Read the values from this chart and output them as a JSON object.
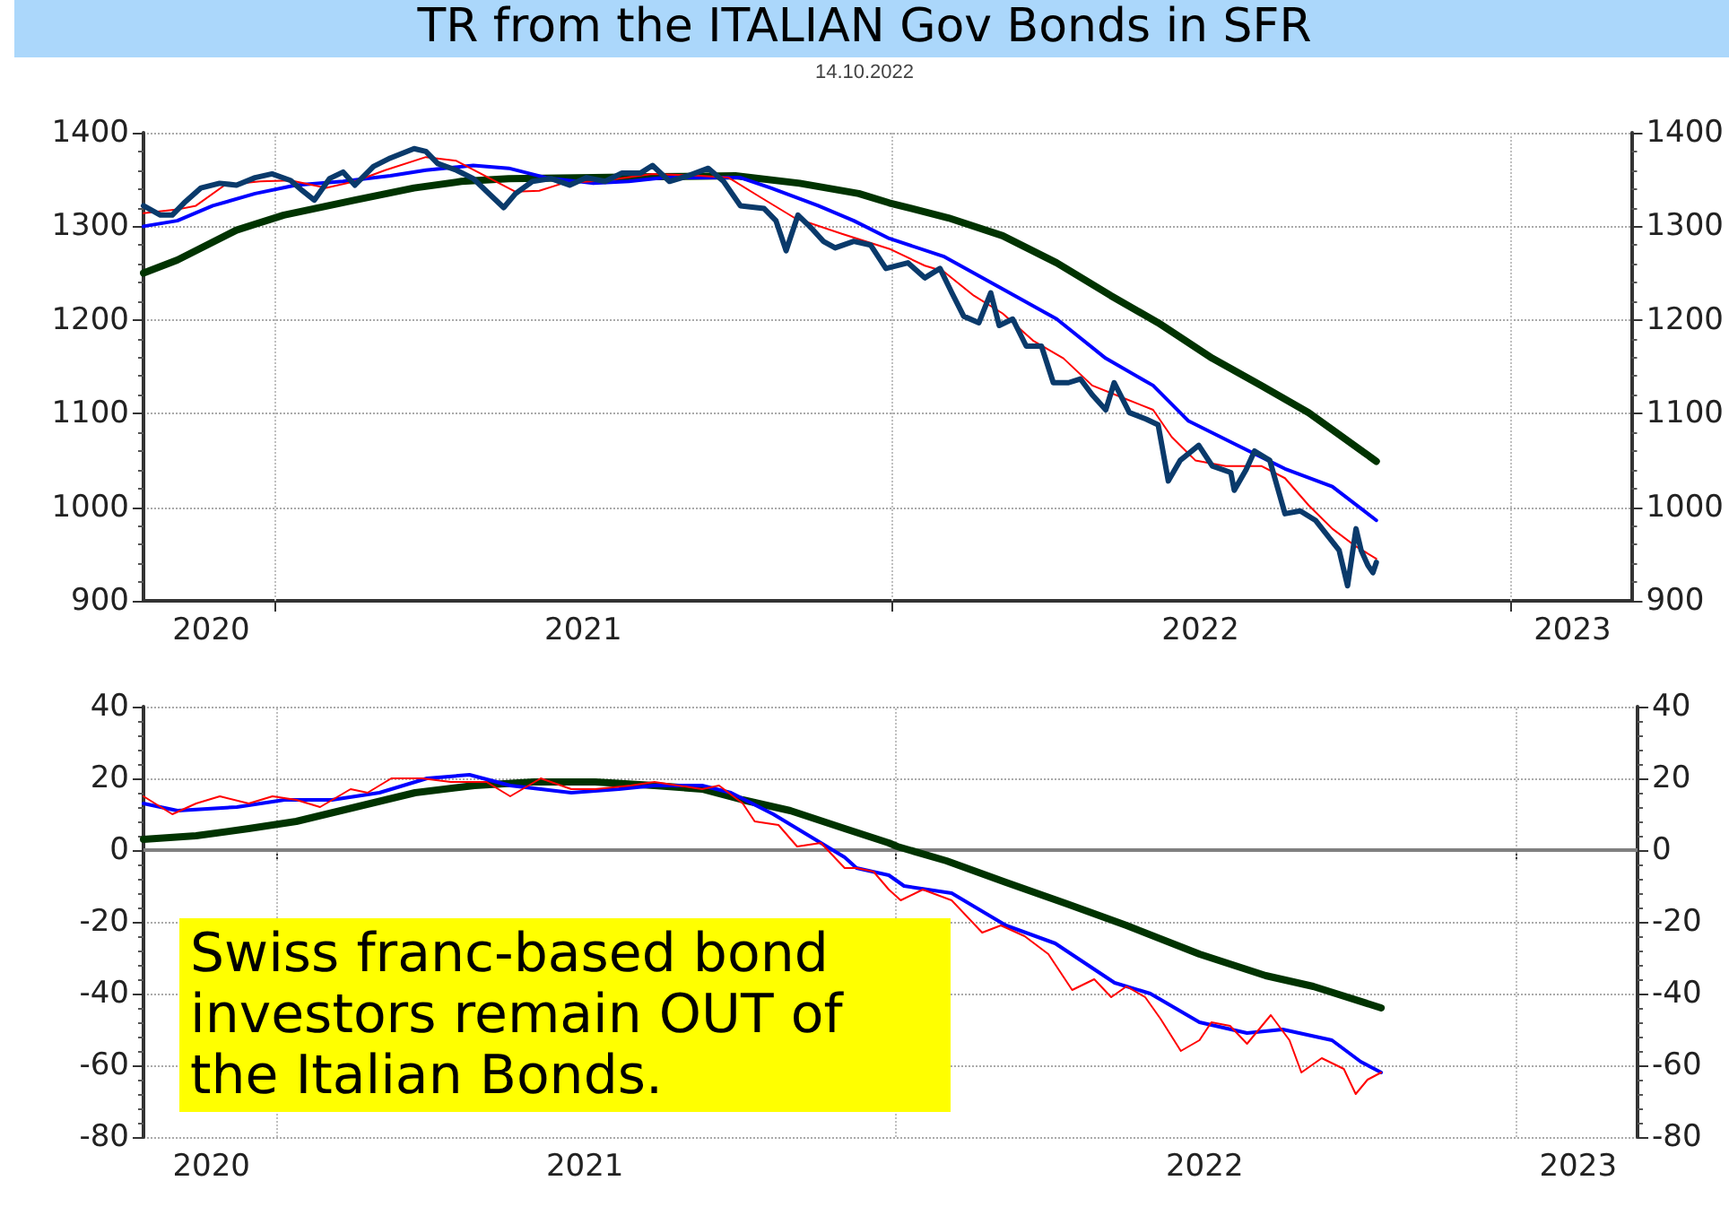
{
  "chart_data": [
    {
      "type": "line",
      "title": "TR from the ITALIAN Gov Bonds in SFR",
      "subtitle": "14.10.2022",
      "marker": "none",
      "grid": "y",
      "xlim": [
        "2020-10-15",
        "2023-03-14"
      ],
      "xticks": [
        {
          "value": "2020-11-24",
          "label": "2020"
        },
        {
          "value": "2021-01-01",
          "label": null
        },
        {
          "value": "2021-07-02",
          "label": "2021"
        },
        {
          "value": "2022-01-01",
          "label": null
        },
        {
          "value": "2022-07-02",
          "label": "2022"
        },
        {
          "value": "2023-01-01",
          "label": null
        },
        {
          "value": "2023-02-07",
          "label": "2023"
        }
      ],
      "ylim": [
        900,
        1400
      ],
      "yticks": [
        900,
        1000,
        1100,
        1200,
        1300,
        1400
      ],
      "y2lim": [
        900,
        1400
      ],
      "y2ticks": [
        900,
        1000,
        1100,
        1200,
        1300,
        1400
      ],
      "ref_lines": [
        {
          "axis": "x",
          "value": "2021-01-01",
          "label": null,
          "color": "#c0c0c0",
          "line_style": "dotted"
        },
        {
          "axis": "x",
          "value": "2022-01-01",
          "label": null,
          "color": "#c0c0c0",
          "line_style": "dotted"
        },
        {
          "axis": "x",
          "value": "2023-01-01",
          "label": null,
          "color": "#c0c0c0",
          "line_style": "dotted"
        }
      ],
      "series": [
        {
          "color": "#0a3a6b",
          "x": [
            "2020-10-15",
            "2020-10-25",
            "2020-11-01",
            "2020-11-08",
            "2020-11-18",
            "2020-11-29",
            "2020-12-09",
            "2020-12-20",
            "2020-12-30",
            "2021-01-10",
            "2021-01-17",
            "2021-01-24",
            "2021-02-02",
            "2021-02-10",
            "2021-02-17",
            "2021-02-28",
            "2021-03-10",
            "2021-03-24",
            "2021-03-31",
            "2021-04-07",
            "2021-04-18",
            "2021-04-28",
            "2021-05-09",
            "2021-05-16",
            "2021-05-23",
            "2021-06-02",
            "2021-06-13",
            "2021-06-24",
            "2021-07-04",
            "2021-07-15",
            "2021-07-25",
            "2021-08-05",
            "2021-08-12",
            "2021-08-22",
            "2021-09-02",
            "2021-09-14",
            "2021-09-23",
            "2021-10-03",
            "2021-10-17",
            "2021-10-24",
            "2021-10-30",
            "2021-11-06",
            "2021-11-14",
            "2021-11-21",
            "2021-11-28",
            "2021-12-09",
            "2021-12-19",
            "2021-12-28",
            "2022-01-10",
            "2022-01-20",
            "2022-01-29",
            "2022-02-05",
            "2022-02-12",
            "2022-02-21",
            "2022-02-28",
            "2022-03-05",
            "2022-03-13",
            "2022-03-21",
            "2022-03-30",
            "2022-04-06",
            "2022-04-15",
            "2022-04-22",
            "2022-04-29",
            "2022-05-07",
            "2022-05-12",
            "2022-05-21",
            "2022-05-31",
            "2022-06-07",
            "2022-06-13",
            "2022-06-20",
            "2022-07-01",
            "2022-07-09",
            "2022-07-20",
            "2022-07-22",
            "2022-07-29",
            "2022-08-03",
            "2022-08-12",
            "2022-08-21",
            "2022-08-30",
            "2022-09-08",
            "2022-09-15",
            "2022-09-22",
            "2022-09-27",
            "2022-10-02",
            "2022-10-05",
            "2022-10-09",
            "2022-10-12",
            "2022-10-14"
          ],
          "values": [
            1322,
            1312,
            1312,
            1325,
            1341,
            1346,
            1344,
            1352,
            1356,
            1349,
            1338,
            1328,
            1351,
            1358,
            1344,
            1364,
            1373,
            1383,
            1380,
            1367,
            1360,
            1351,
            1332,
            1320,
            1335,
            1348,
            1351,
            1344,
            1352,
            1348,
            1357,
            1357,
            1365,
            1348,
            1354,
            1362,
            1348,
            1322,
            1319,
            1306,
            1274,
            1312,
            1298,
            1284,
            1277,
            1284,
            1280,
            1255,
            1261,
            1245,
            1255,
            1229,
            1204,
            1197,
            1229,
            1194,
            1201,
            1172,
            1172,
            1133,
            1133,
            1137,
            1120,
            1104,
            1133,
            1101,
            1094,
            1088,
            1028,
            1050,
            1066,
            1044,
            1037,
            1018,
            1040,
            1060,
            1050,
            993,
            996,
            986,
            970,
            954,
            916,
            977,
            954,
            938,
            930,
            941
          ]
        },
        {
          "color": "#ff0000",
          "x": [
            "2020-10-15",
            "2020-11-04",
            "2020-11-15",
            "2020-12-02",
            "2020-12-23",
            "2021-01-10",
            "2021-01-31",
            "2021-02-17",
            "2021-03-07",
            "2021-03-31",
            "2021-04-18",
            "2021-05-05",
            "2021-05-23",
            "2021-06-06",
            "2021-06-20",
            "2021-07-15",
            "2021-08-12",
            "2021-09-09",
            "2021-09-26",
            "2021-10-14",
            "2021-11-04",
            "2021-12-02",
            "2021-12-30",
            "2022-01-20",
            "2022-01-31",
            "2022-02-18",
            "2022-03-07",
            "2022-03-25",
            "2022-04-12",
            "2022-04-29",
            "2022-05-17",
            "2022-06-04",
            "2022-06-15",
            "2022-06-29",
            "2022-07-17",
            "2022-08-07",
            "2022-08-21",
            "2022-09-04",
            "2022-09-18",
            "2022-10-02",
            "2022-10-14"
          ],
          "values": [
            1314,
            1318,
            1322,
            1344,
            1348,
            1349,
            1341,
            1348,
            1360,
            1374,
            1370,
            1354,
            1337,
            1338,
            1346,
            1349,
            1356,
            1354,
            1352,
            1332,
            1309,
            1292,
            1276,
            1258,
            1252,
            1226,
            1207,
            1178,
            1159,
            1130,
            1117,
            1104,
            1075,
            1050,
            1044,
            1044,
            1031,
            1002,
            977,
            958,
            945
          ]
        },
        {
          "color": "#0000ff",
          "x": [
            "2020-10-15",
            "2020-11-04",
            "2020-11-25",
            "2020-12-20",
            "2021-01-13",
            "2021-02-10",
            "2021-03-10",
            "2021-03-31",
            "2021-04-28",
            "2021-05-19",
            "2021-06-10",
            "2021-07-08",
            "2021-07-29",
            "2021-08-19",
            "2021-09-16",
            "2021-10-03",
            "2021-10-21",
            "2021-11-18",
            "2021-12-09",
            "2021-12-30",
            "2022-01-31",
            "2022-03-07",
            "2022-04-08",
            "2022-05-07",
            "2022-06-04",
            "2022-06-25",
            "2022-07-24",
            "2022-08-21",
            "2022-09-18",
            "2022-10-14"
          ],
          "values": [
            1300,
            1306,
            1322,
            1335,
            1344,
            1348,
            1354,
            1360,
            1365,
            1362,
            1352,
            1346,
            1348,
            1352,
            1352,
            1352,
            1341,
            1322,
            1306,
            1287,
            1268,
            1233,
            1201,
            1159,
            1130,
            1092,
            1066,
            1041,
            1022,
            986
          ]
        },
        {
          "color": "#003300",
          "x": [
            "2020-10-15",
            "2020-11-04",
            "2020-12-09",
            "2021-01-06",
            "2021-02-17",
            "2021-03-24",
            "2021-04-21",
            "2021-05-19",
            "2021-07-08",
            "2021-08-12",
            "2021-09-30",
            "2021-11-07",
            "2021-12-12",
            "2021-12-30",
            "2022-02-03",
            "2022-03-07",
            "2022-04-08",
            "2022-05-10",
            "2022-06-07",
            "2022-07-09",
            "2022-08-07",
            "2022-09-04",
            "2022-10-14"
          ],
          "values": [
            1250,
            1264,
            1296,
            1312,
            1328,
            1341,
            1348,
            1351,
            1352,
            1353,
            1354,
            1346,
            1335,
            1325,
            1309,
            1290,
            1261,
            1226,
            1197,
            1159,
            1130,
            1101,
            1049
          ]
        }
      ]
    },
    {
      "type": "line",
      "marker": "none",
      "grid": "y",
      "annotations": [
        "Swiss franc-based bond investors remain OUT of the Italian Bonds."
      ],
      "xlim": [
        "2020-10-15",
        "2023-03-14"
      ],
      "xticks": [
        {
          "value": "2020-11-24",
          "label": "2020"
        },
        {
          "value": "2021-01-01",
          "label": null
        },
        {
          "value": "2021-07-02",
          "label": "2021"
        },
        {
          "value": "2022-01-01",
          "label": null
        },
        {
          "value": "2022-07-02",
          "label": "2022"
        },
        {
          "value": "2023-01-01",
          "label": null
        },
        {
          "value": "2023-02-07",
          "label": "2023"
        }
      ],
      "ylim": [
        -80,
        40
      ],
      "yticks": [
        -80,
        -60,
        -40,
        -20,
        0,
        20,
        40
      ],
      "y2lim": [
        -80,
        40
      ],
      "y2ticks": [
        -80,
        -60,
        -40,
        -20,
        0,
        20,
        40
      ],
      "ref_lines": [
        {
          "axis": "x",
          "value": "2021-01-01",
          "label": null,
          "color": "#c0c0c0",
          "line_style": "dotted"
        },
        {
          "axis": "x",
          "value": "2022-01-01",
          "label": null,
          "color": "#c0c0c0",
          "line_style": "dotted"
        },
        {
          "axis": "x",
          "value": "2023-01-01",
          "label": null,
          "color": "#c0c0c0",
          "line_style": "dotted"
        },
        {
          "axis": "y",
          "value": 0,
          "label": null,
          "color": "#808080",
          "line_style": "solid"
        }
      ],
      "series": [
        {
          "color": "#ff0000",
          "x": [
            "2020-10-15",
            "2020-11-01",
            "2020-11-15",
            "2020-11-29",
            "2020-12-16",
            "2020-12-30",
            "2021-01-13",
            "2021-01-27",
            "2021-02-14",
            "2021-02-24",
            "2021-03-10",
            "2021-03-28",
            "2021-04-14",
            "2021-05-05",
            "2021-05-19",
            "2021-06-06",
            "2021-06-24",
            "2021-07-08",
            "2021-07-29",
            "2021-08-12",
            "2021-09-09",
            "2021-09-19",
            "2021-10-03",
            "2021-10-10",
            "2021-10-24",
            "2021-11-04",
            "2021-11-18",
            "2021-12-02",
            "2021-12-09",
            "2021-12-19",
            "2021-12-28",
            "2022-01-04",
            "2022-01-17",
            "2022-02-03",
            "2022-02-21",
            "2022-03-04",
            "2022-03-18",
            "2022-04-01",
            "2022-04-15",
            "2022-04-28",
            "2022-05-08",
            "2022-05-17",
            "2022-05-28",
            "2022-06-06",
            "2022-06-18",
            "2022-06-29",
            "2022-07-06",
            "2022-07-17",
            "2022-07-27",
            "2022-08-10",
            "2022-08-21",
            "2022-08-28",
            "2022-09-09",
            "2022-09-22",
            "2022-09-29",
            "2022-10-06",
            "2022-10-14"
          ],
          "values": [
            15,
            10,
            13,
            15,
            13,
            15,
            14,
            12,
            17,
            16,
            20,
            20,
            19,
            19,
            15,
            20,
            17,
            17,
            18,
            19,
            17,
            18,
            13,
            8,
            7,
            1,
            2,
            -5,
            -5,
            -6,
            -11,
            -14,
            -11,
            -14,
            -23,
            -21,
            -24,
            -29,
            -39,
            -36,
            -41,
            -38,
            -41,
            -47,
            -56,
            -53,
            -48,
            -49,
            -54,
            -46,
            -53,
            -62,
            -58,
            -61,
            -68,
            -64,
            -62
          ]
        },
        {
          "color": "#0000ff",
          "x": [
            "2020-10-15",
            "2020-11-04",
            "2020-12-09",
            "2021-01-06",
            "2021-02-03",
            "2021-03-03",
            "2021-03-31",
            "2021-04-25",
            "2021-05-19",
            "2021-06-24",
            "2021-07-22",
            "2021-08-12",
            "2021-09-09",
            "2021-09-26",
            "2021-10-21",
            "2021-11-11",
            "2021-12-02",
            "2021-12-09",
            "2021-12-28",
            "2022-01-06",
            "2022-02-03",
            "2022-03-07",
            "2022-04-05",
            "2022-05-10",
            "2022-05-31",
            "2022-06-29",
            "2022-07-27",
            "2022-08-17",
            "2022-09-15",
            "2022-10-02",
            "2022-10-14"
          ],
          "values": [
            13,
            11,
            12,
            14,
            14,
            16,
            20,
            21,
            18,
            16,
            17,
            18,
            18,
            16,
            10,
            4,
            -2,
            -5,
            -7,
            -10,
            -12,
            -21,
            -26,
            -37,
            -40,
            -48,
            -51,
            -50,
            -53,
            -59,
            -62
          ]
        },
        {
          "color": "#003300",
          "x": [
            "2020-10-15",
            "2020-11-15",
            "2020-12-16",
            "2021-01-13",
            "2021-02-17",
            "2021-03-24",
            "2021-04-28",
            "2021-06-02",
            "2021-07-08",
            "2021-08-12",
            "2021-09-09",
            "2021-10-03",
            "2021-10-31",
            "2021-12-02",
            "2021-12-28",
            "2022-01-02",
            "2022-01-31",
            "2022-03-07",
            "2022-04-12",
            "2022-05-17",
            "2022-06-29",
            "2022-08-07",
            "2022-09-04",
            "2022-10-14"
          ],
          "values": [
            3,
            4,
            6,
            8,
            12,
            16,
            18,
            19,
            19,
            18,
            17,
            14,
            11,
            6,
            2,
            1,
            -3,
            -9,
            -15,
            -21,
            -29,
            -35,
            -38,
            -44
          ]
        }
      ]
    }
  ]
}
